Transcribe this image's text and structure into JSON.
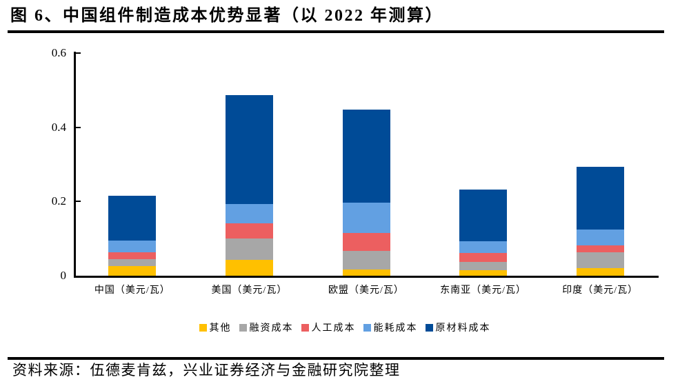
{
  "title": "图 6、中国组件制造成本优势显著（以 2022 年测算）",
  "source": "资料来源：伍德麦肯兹，兴业证券经济与金融研究院整理",
  "chart_data": {
    "type": "bar",
    "stacked": true,
    "title": "中国组件制造成本优势显著（以2022年测算）",
    "categories": [
      "中国（美元/瓦）",
      "美国（美元/瓦）",
      "欧盟（美元/瓦）",
      "东南亚（美元/瓦）",
      "印度（美元/瓦）"
    ],
    "series": [
      {
        "name": "其他",
        "color": "#FFC000",
        "values": [
          0.026,
          0.042,
          0.017,
          0.014,
          0.02
        ]
      },
      {
        "name": "融资成本",
        "color": "#A7A7A7",
        "values": [
          0.018,
          0.058,
          0.049,
          0.024,
          0.043
        ]
      },
      {
        "name": "人工成本",
        "color": "#EC5F60",
        "values": [
          0.02,
          0.042,
          0.05,
          0.023,
          0.019
        ]
      },
      {
        "name": "能耗成本",
        "color": "#62A0E2",
        "values": [
          0.03,
          0.052,
          0.08,
          0.031,
          0.042
        ]
      },
      {
        "name": "原材料成本",
        "color": "#004B97",
        "values": [
          0.122,
          0.292,
          0.252,
          0.14,
          0.17
        ]
      }
    ],
    "ylim": [
      0,
      0.6
    ],
    "yticks": [
      0,
      0.2,
      0.4,
      0.6
    ],
    "ytick_labels": [
      "0",
      "0.2",
      "0.4",
      "0.6"
    ],
    "xlabel": "",
    "ylabel": "",
    "grid": false,
    "legend_position": "bottom"
  }
}
